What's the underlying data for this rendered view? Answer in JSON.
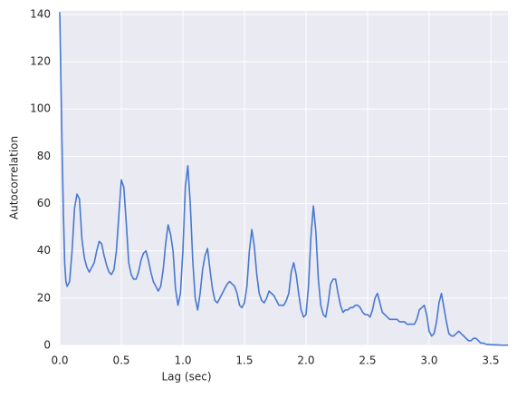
{
  "chart_data": {
    "type": "line",
    "xlabel": "Lag (sec)",
    "ylabel": "Autocorrelation",
    "color": "#4878d0",
    "grid": true,
    "xlim": [
      0,
      3.64
    ],
    "ylim": [
      0,
      141.5
    ],
    "xticks": [
      {
        "value": 0,
        "label": "0.0"
      },
      0.5,
      {
        "value": 1,
        "label": "1.0"
      },
      1.5,
      {
        "value": 2,
        "label": "2.0"
      },
      2.5,
      {
        "value": 3,
        "label": "3.0"
      },
      3.5
    ],
    "yticks": [
      0,
      20,
      40,
      60,
      80,
      100,
      120,
      140
    ],
    "x": [
      0,
      0.01,
      0.02,
      0.03,
      0.04,
      0.05,
      0.06,
      0.08,
      0.1,
      0.12,
      0.14,
      0.16,
      0.18,
      0.2,
      0.22,
      0.24,
      0.26,
      0.28,
      0.3,
      0.32,
      0.34,
      0.36,
      0.38,
      0.4,
      0.42,
      0.44,
      0.46,
      0.48,
      0.5,
      0.52,
      0.54,
      0.56,
      0.58,
      0.6,
      0.62,
      0.64,
      0.66,
      0.68,
      0.7,
      0.72,
      0.74,
      0.76,
      0.78,
      0.8,
      0.82,
      0.84,
      0.86,
      0.88,
      0.9,
      0.92,
      0.94,
      0.96,
      0.98,
      1.0,
      1.02,
      1.04,
      1.06,
      1.08,
      1.1,
      1.12,
      1.14,
      1.16,
      1.18,
      1.2,
      1.22,
      1.24,
      1.26,
      1.28,
      1.3,
      1.32,
      1.34,
      1.36,
      1.38,
      1.4,
      1.42,
      1.44,
      1.46,
      1.48,
      1.5,
      1.52,
      1.54,
      1.56,
      1.58,
      1.6,
      1.62,
      1.64,
      1.66,
      1.68,
      1.7,
      1.72,
      1.74,
      1.76,
      1.78,
      1.8,
      1.82,
      1.84,
      1.86,
      1.88,
      1.9,
      1.92,
      1.94,
      1.96,
      1.98,
      2.0,
      2.02,
      2.04,
      2.06,
      2.08,
      2.1,
      2.12,
      2.14,
      2.16,
      2.18,
      2.2,
      2.22,
      2.24,
      2.26,
      2.28,
      2.3,
      2.32,
      2.34,
      2.36,
      2.38,
      2.4,
      2.42,
      2.44,
      2.46,
      2.48,
      2.5,
      2.52,
      2.54,
      2.56,
      2.58,
      2.6,
      2.62,
      2.64,
      2.66,
      2.68,
      2.7,
      2.72,
      2.74,
      2.76,
      2.78,
      2.8,
      2.82,
      2.84,
      2.86,
      2.88,
      2.9,
      2.92,
      2.94,
      2.96,
      2.98,
      3.0,
      3.02,
      3.04,
      3.06,
      3.08,
      3.1,
      3.12,
      3.14,
      3.16,
      3.18,
      3.2,
      3.22,
      3.24,
      3.26,
      3.28,
      3.3,
      3.32,
      3.34,
      3.36,
      3.38,
      3.4,
      3.42,
      3.44,
      3.46,
      3.5,
      3.55,
      3.6,
      3.64
    ],
    "values": [
      141,
      110,
      80,
      55,
      35,
      27,
      25,
      27,
      40,
      58,
      64,
      62,
      45,
      37,
      33,
      31,
      33,
      35,
      40,
      44,
      43,
      38,
      34,
      31,
      30,
      32,
      40,
      55,
      70,
      67,
      52,
      35,
      30,
      28,
      28,
      31,
      36,
      39,
      40,
      36,
      31,
      27,
      25,
      23,
      25,
      32,
      43,
      51,
      47,
      40,
      24,
      17,
      22,
      40,
      67,
      76,
      60,
      36,
      20,
      15,
      22,
      32,
      38,
      41,
      32,
      24,
      19,
      18,
      20,
      22,
      24,
      26,
      27,
      26,
      25,
      22,
      17,
      16,
      18,
      25,
      40,
      49,
      42,
      30,
      22,
      19,
      18,
      20,
      23,
      22,
      21,
      19,
      17,
      17,
      17,
      19,
      22,
      31,
      35,
      30,
      22,
      15,
      12,
      13,
      25,
      46,
      59,
      48,
      28,
      17,
      13,
      12,
      18,
      26,
      28,
      28,
      22,
      17,
      14,
      15,
      15,
      16,
      16,
      17,
      17,
      16,
      14,
      13,
      13,
      12,
      15,
      20,
      22,
      18,
      14,
      13,
      12,
      11,
      11,
      11,
      11,
      10,
      10,
      10,
      9,
      9,
      9,
      9,
      11,
      15,
      16,
      17,
      13,
      6,
      4,
      5,
      10,
      18,
      22,
      16,
      10,
      5,
      4,
      4,
      5,
      6,
      5,
      4,
      3,
      2,
      2,
      3,
      3,
      2,
      1,
      1,
      0.5,
      0.3,
      0.2,
      0.1,
      0.1
    ]
  }
}
